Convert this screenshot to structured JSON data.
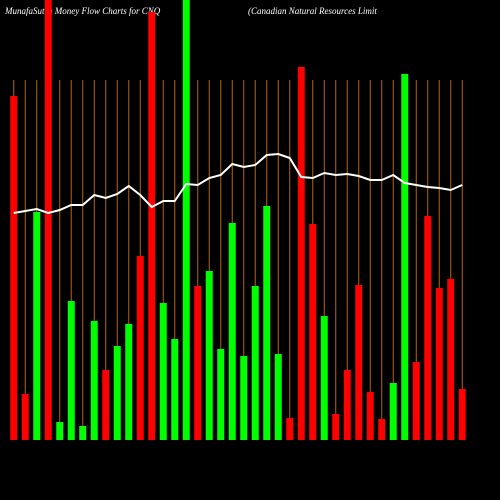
{
  "chart_data": {
    "type": "bar-line",
    "title": "MunafaSutra  Money Flow  Charts for CNQ",
    "subtitle": "(Canadian  Natural Resources Limit",
    "categories": [
      null,
      null,
      null,
      null,
      null,
      null,
      null,
      null,
      null,
      null,
      null,
      null,
      null,
      null,
      null,
      null,
      null,
      null,
      null,
      null,
      null,
      null,
      null,
      null,
      null,
      null,
      null,
      null,
      null,
      null,
      null,
      null,
      null,
      null,
      null,
      null,
      null,
      null,
      null,
      null
    ],
    "series": [
      {
        "type": "bar",
        "values": [
          344,
          46,
          228,
          440,
          18,
          139,
          14,
          119,
          70,
          94,
          116,
          184,
          428,
          137,
          101,
          440,
          154,
          169,
          91,
          217,
          84,
          154,
          234,
          86,
          22,
          373,
          216,
          124,
          26,
          70,
          155,
          48,
          21,
          57,
          366,
          78,
          224,
          152,
          161,
          51
        ],
        "colors": [
          "#ff0000",
          "#ff0000",
          "#00ff00",
          "#ff0000",
          "#00ff00",
          "#00ff00",
          "#00ff00",
          "#00ff00",
          "#ff0000",
          "#00ff00",
          "#00ff00",
          "#ff0000",
          "#ff0000",
          "#00ff00",
          "#00ff00",
          "#00ff00",
          "#ff0000",
          "#00ff00",
          "#00ff00",
          "#00ff00",
          "#00ff00",
          "#00ff00",
          "#00ff00",
          "#00ff00",
          "#ff0000",
          "#ff0000",
          "#ff0000",
          "#00ff00",
          "#ff0000",
          "#ff0000",
          "#ff0000",
          "#ff0000",
          "#ff0000",
          "#00ff00",
          "#00ff00",
          "#ff0000",
          "#ff0000",
          "#ff0000",
          "#ff0000",
          "#ff0000"
        ]
      },
      {
        "type": "line",
        "color": "#ffffff",
        "values": [
          227,
          229,
          231,
          227,
          230,
          235,
          235,
          245,
          242,
          246,
          254,
          245,
          233,
          239,
          239,
          256,
          255,
          262,
          265,
          276,
          273,
          275,
          285,
          286,
          282,
          263,
          262,
          267,
          265,
          266,
          264,
          260,
          260,
          265,
          257,
          255,
          253,
          252,
          250,
          255
        ]
      }
    ],
    "ylim": [
      0,
      440
    ],
    "grid": true,
    "grid_color": "#b8640a"
  }
}
